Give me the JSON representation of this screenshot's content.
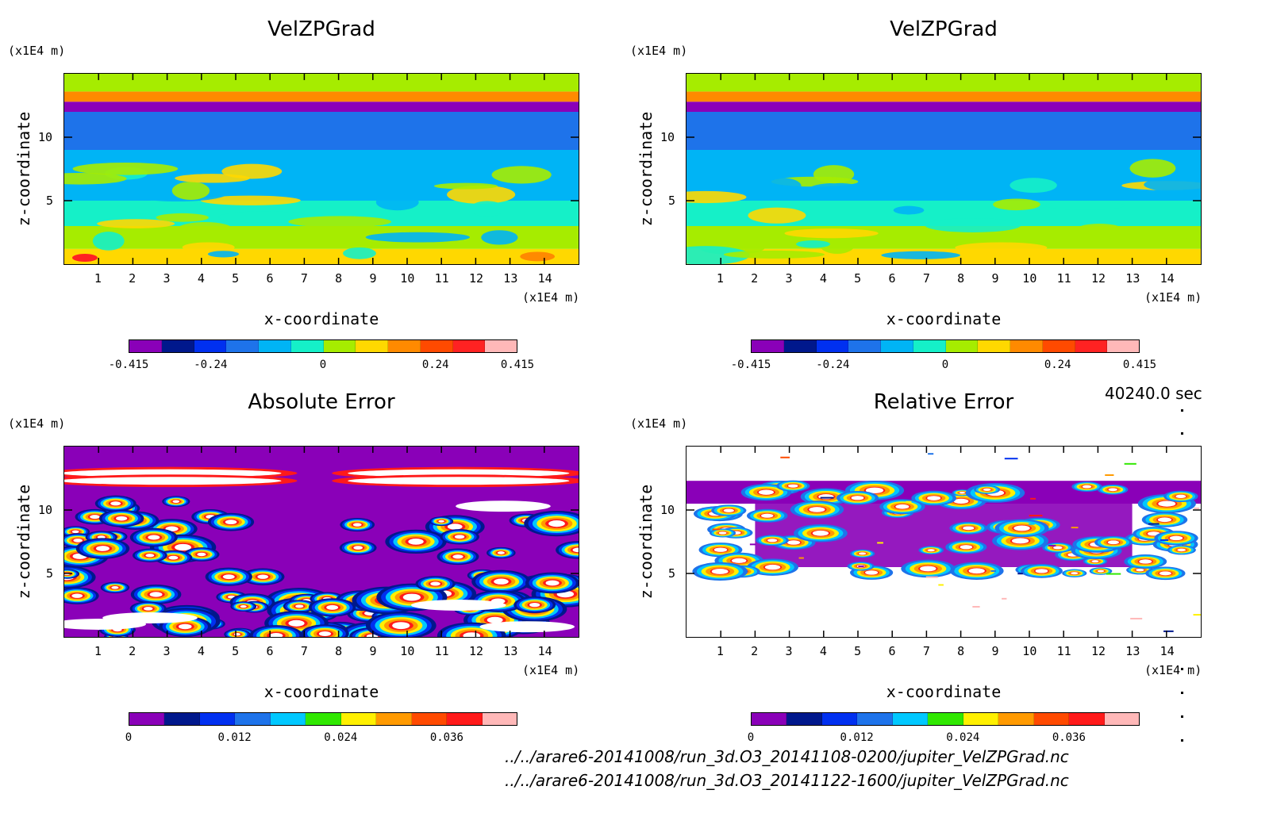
{
  "colors": {
    "field_scale": [
      "#8a00b8",
      "#00188c",
      "#0030f0",
      "#1e73ea",
      "#00b4f5",
      "#15f0c8",
      "#a6ec00",
      "#ffd800",
      "#ff8a00",
      "#ff4a00",
      "#ff2222",
      "#ffb8b8"
    ],
    "error_scale": [
      "#8a00b8",
      "#00188c",
      "#0030f0",
      "#1e73ea",
      "#00c8ff",
      "#30e800",
      "#fff000",
      "#ff9a00",
      "#ff4a00",
      "#ff1a1a",
      "#ffb8b8"
    ]
  },
  "chart_data": [
    {
      "type": "heatmap",
      "title": "VelZPGrad",
      "xlabel": "x-coordinate",
      "ylabel": "z-coordinate",
      "x_unit": "(x1E4 m)",
      "y_unit": "(x1E4 m)",
      "xlim": [
        0,
        15
      ],
      "ylim": [
        0,
        15
      ],
      "xticks": [
        "1",
        "2",
        "3",
        "4",
        "5",
        "6",
        "7",
        "8",
        "9",
        "10",
        "11",
        "12",
        "13",
        "14"
      ],
      "yticks": [
        "5",
        "10"
      ],
      "colorbar": {
        "ticks": [
          "-0.415",
          "-0.24",
          "0",
          "0.24",
          "0.415"
        ],
        "range": [
          -0.415,
          0.415
        ]
      },
      "bands": [
        {
          "z": [
            0,
            1.2
          ],
          "value": 0.1
        },
        {
          "z": [
            1.2,
            3
          ],
          "value": 0.03
        },
        {
          "z": [
            3,
            5
          ],
          "value": -0.06
        },
        {
          "z": [
            5,
            9
          ],
          "value": -0.1
        },
        {
          "z": [
            9,
            12
          ],
          "value": -0.2
        },
        {
          "z": [
            12,
            12.8
          ],
          "value": -0.35
        },
        {
          "z": [
            12.8,
            13.6
          ],
          "value": 0.2
        },
        {
          "z": [
            13.6,
            15
          ],
          "value": 0.05
        }
      ]
    },
    {
      "type": "heatmap",
      "title": "VelZPGrad",
      "xlabel": "x-coordinate",
      "ylabel": "z-coordinate",
      "x_unit": "(x1E4 m)",
      "y_unit": "(x1E4 m)",
      "xlim": [
        0,
        15
      ],
      "ylim": [
        0,
        15
      ],
      "xticks": [
        "1",
        "2",
        "3",
        "4",
        "5",
        "6",
        "7",
        "8",
        "9",
        "10",
        "11",
        "12",
        "13",
        "14"
      ],
      "yticks": [
        "5",
        "10"
      ],
      "colorbar": {
        "ticks": [
          "-0.415",
          "-0.24",
          "0",
          "0.24",
          "0.415"
        ],
        "range": [
          -0.415,
          0.415
        ]
      },
      "bands": [
        {
          "z": [
            0,
            1.2
          ],
          "value": 0.1
        },
        {
          "z": [
            1.2,
            3
          ],
          "value": 0.03
        },
        {
          "z": [
            3,
            5
          ],
          "value": -0.06
        },
        {
          "z": [
            5,
            9
          ],
          "value": -0.1
        },
        {
          "z": [
            9,
            12
          ],
          "value": -0.2
        },
        {
          "z": [
            12,
            12.8
          ],
          "value": -0.35
        },
        {
          "z": [
            12.8,
            13.6
          ],
          "value": 0.2
        },
        {
          "z": [
            13.6,
            15
          ],
          "value": 0.05
        }
      ]
    },
    {
      "type": "heatmap",
      "title": "Absolute Error",
      "xlabel": "x-coordinate",
      "ylabel": "z-coordinate",
      "x_unit": "(x1E4 m)",
      "y_unit": "(x1E4 m)",
      "xlim": [
        0,
        15
      ],
      "ylim": [
        0,
        15
      ],
      "xticks": [
        "1",
        "2",
        "3",
        "4",
        "5",
        "6",
        "7",
        "8",
        "9",
        "10",
        "11",
        "12",
        "13",
        "14"
      ],
      "yticks": [
        "5",
        "10"
      ],
      "colorbar": {
        "ticks": [
          "0",
          "0.012",
          "0.024",
          "0.036"
        ],
        "range": [
          0,
          0.044
        ]
      },
      "background_value": 0
    },
    {
      "type": "heatmap",
      "title": "Relative Error",
      "xlabel": "x-coordinate",
      "ylabel": "z-coordinate",
      "x_unit": "(x1E4 m)",
      "y_unit": "(x1E4 m)",
      "xlim": [
        0,
        15
      ],
      "ylim": [
        0,
        15
      ],
      "xticks": [
        "1",
        "2",
        "3",
        "4",
        "5",
        "6",
        "7",
        "8",
        "9",
        "10",
        "11",
        "12",
        "13",
        "14"
      ],
      "yticks": [
        "5",
        "10"
      ],
      "colorbar": {
        "ticks": [
          "0",
          "0.012",
          "0.024",
          "0.036"
        ],
        "range": [
          0,
          0.044
        ]
      },
      "background_value": "out of range (white)"
    }
  ],
  "time_label": "40240.0 sec",
  "files": [
    "../../arare6-20141008/run_3d.O3_20141108-0200/jupiter_VelZPGrad.nc",
    "../../arare6-20141008/run_3d.O3_20141122-1600/jupiter_VelZPGrad.nc"
  ]
}
